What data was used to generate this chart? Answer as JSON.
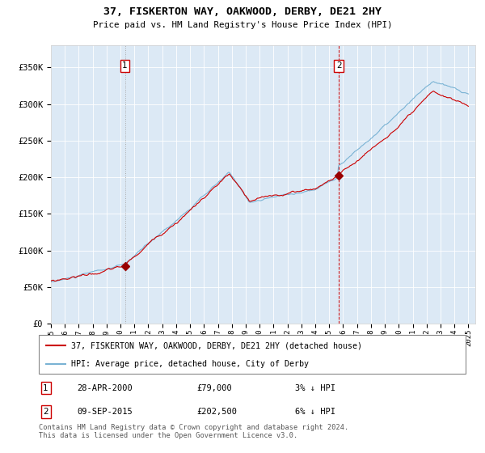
{
  "title": "37, FISKERTON WAY, OAKWOOD, DERBY, DE21 2HY",
  "subtitle": "Price paid vs. HM Land Registry's House Price Index (HPI)",
  "hpi_color": "#7ab3d4",
  "price_color": "#cc0000",
  "marker_color": "#990000",
  "vline1_style": "dotted",
  "vline1_color": "#aaaaaa",
  "vline2_style": "dashed",
  "vline2_color": "#cc0000",
  "legend_line1": "37, FISKERTON WAY, OAKWOOD, DERBY, DE21 2HY (detached house)",
  "legend_line2": "HPI: Average price, detached house, City of Derby",
  "annotation_box1_label": "1",
  "annotation_box1_date": "28-APR-2000",
  "annotation_box1_price": "£79,000",
  "annotation_box1_hpi": "3% ↓ HPI",
  "annotation_box2_label": "2",
  "annotation_box2_date": "09-SEP-2015",
  "annotation_box2_price": "£202,500",
  "annotation_box2_hpi": "6% ↓ HPI",
  "footer": "Contains HM Land Registry data © Crown copyright and database right 2024.\nThis data is licensed under the Open Government Licence v3.0.",
  "plot_bg_color": "#dce9f5",
  "ylim": [
    0,
    380000
  ],
  "yticks": [
    0,
    50000,
    100000,
    150000,
    200000,
    250000,
    300000,
    350000
  ],
  "ytick_labels": [
    "£0",
    "£50K",
    "£100K",
    "£150K",
    "£200K",
    "£250K",
    "£300K",
    "£350K"
  ],
  "purchase1_year": 2000.32,
  "purchase1_price": 79000,
  "purchase2_year": 2015.69,
  "purchase2_price": 202500
}
